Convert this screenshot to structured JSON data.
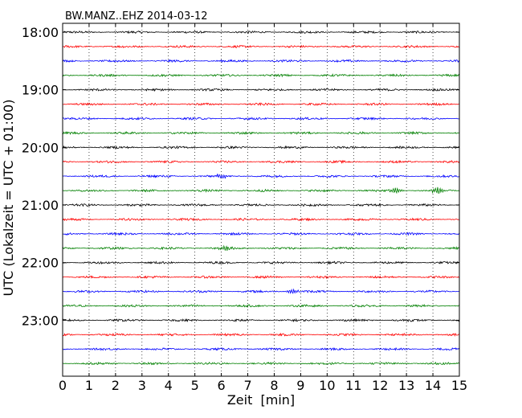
{
  "chart_data": {
    "type": "line",
    "title": "BW.MANZ..EHZ 2014-03-12",
    "xlabel": "Zeit  [min]",
    "ylabel": "UTC (Lokalzeit = UTC + 01:00)",
    "xlim": [
      0,
      15
    ],
    "x_ticks": [
      "0",
      "1",
      "2",
      "3",
      "4",
      "5",
      "6",
      "7",
      "8",
      "9",
      "10",
      "11",
      "12",
      "13",
      "14",
      "15"
    ],
    "y_ticks": [
      "18:00",
      "19:00",
      "20:00",
      "21:00",
      "22:00",
      "23:00"
    ],
    "trace_interval_minutes": 15,
    "trace_start_times": [
      "18:00",
      "18:15",
      "18:30",
      "18:45",
      "19:00",
      "19:15",
      "19:30",
      "19:45",
      "20:00",
      "20:15",
      "20:30",
      "20:45",
      "21:00",
      "21:15",
      "21:30",
      "21:45",
      "22:00",
      "22:15",
      "22:30",
      "22:45",
      "23:00",
      "23:15",
      "23:30",
      "23:45"
    ],
    "trace_colors": [
      "#000000",
      "#ff0000",
      "#0000ff",
      "#008000"
    ],
    "grid": "vertical dotted lines at each minute",
    "noise_level": 0.18,
    "events": [
      {
        "trace": 10,
        "x": 6.0,
        "amplitude": 0.35
      },
      {
        "trace": 11,
        "x": 14.2,
        "amplitude": 0.4
      },
      {
        "trace": 11,
        "x": 12.6,
        "amplitude": 0.35
      },
      {
        "trace": 15,
        "x": 6.1,
        "amplitude": 0.35
      },
      {
        "trace": 18,
        "x": 8.7,
        "amplitude": 0.3
      }
    ]
  }
}
